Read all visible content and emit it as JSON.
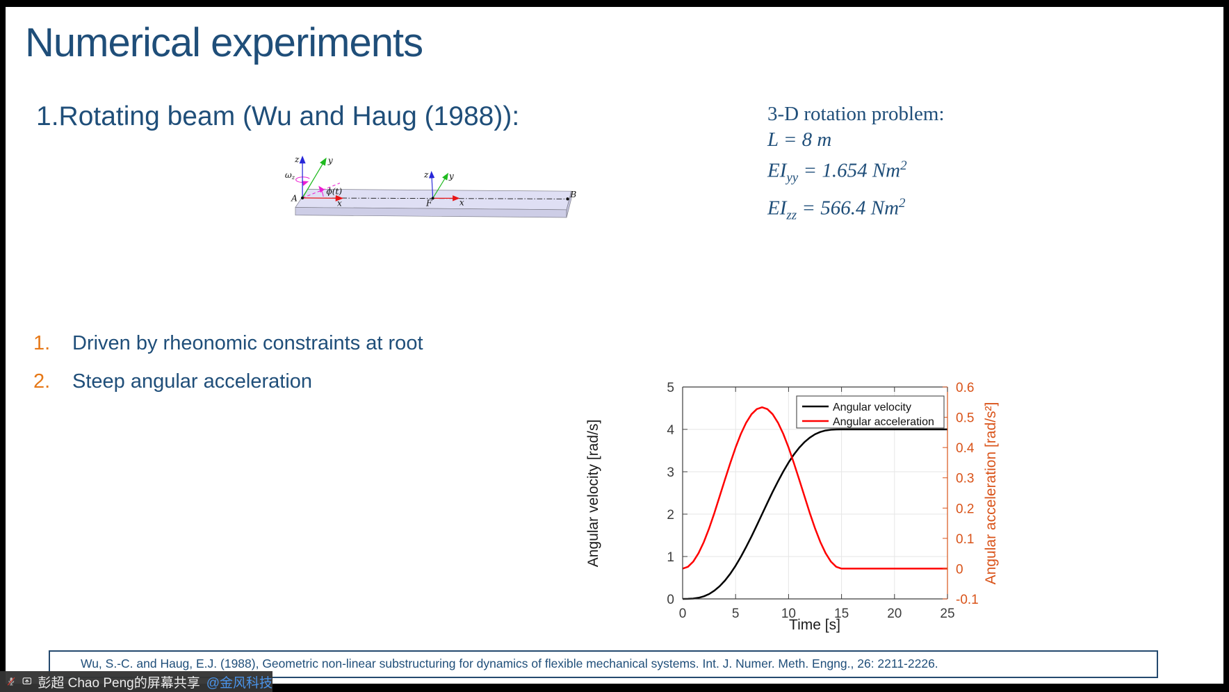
{
  "slide": {
    "title": "Numerical experiments",
    "heading": "1.Rotating beam (Wu and Haug (1988)):"
  },
  "info": {
    "title": "3-D rotation problem:",
    "l_line": "L = 8 m",
    "ei_yy": {
      "base": "EI",
      "sub": "yy",
      "mid": " = 1.654 ",
      "unit": "Nm",
      "sup": "2"
    },
    "ei_zz": {
      "base": "EI",
      "sub": "zz",
      "mid": " = 566.4 ",
      "unit": "Nm",
      "sup": "2"
    }
  },
  "diagram": {
    "labels": {
      "a": "A",
      "b": "B",
      "f": "F",
      "x": "x",
      "y": "y",
      "z": "z",
      "omega": "ω",
      "omega_sub": "z",
      "phi": "ϕ(t)"
    },
    "colors": {
      "x_axis": "#e81416",
      "y_axis": "#1fba1f",
      "z_axis": "#2727d8",
      "magenta": "#ec1fd2",
      "beam_top": "#dfdff4",
      "beam_front": "#cdcde6",
      "beam_side": "#c3c3dc",
      "beam_edge": "#82828f"
    }
  },
  "list": {
    "items": [
      {
        "number": "1.",
        "text": "Driven by rheonomic constraints at root"
      },
      {
        "number": "2.",
        "text": "Steep angular acceleration"
      }
    ]
  },
  "chart_data": {
    "type": "line",
    "title": "",
    "xlabel": "Time [s]",
    "xlim": [
      0,
      25
    ],
    "xticks": [
      0,
      5,
      10,
      15,
      20,
      25
    ],
    "grid": true,
    "legend": {
      "position": "top-right",
      "entries": [
        "Angular velocity",
        "Angular acceleration"
      ]
    },
    "left_axis": {
      "label": "Angular velocity [rad/s]",
      "lim": [
        0,
        5
      ],
      "ticks": [
        0,
        1,
        2,
        3,
        4,
        5
      ],
      "color": "#000000"
    },
    "right_axis": {
      "label": "Angular acceleration [rad/s²]",
      "lim": [
        -0.1,
        0.6
      ],
      "ticks": [
        -0.1,
        0,
        0.1,
        0.2,
        0.3,
        0.4,
        0.5,
        0.6
      ],
      "color": "#d95319"
    },
    "x": [
      0,
      0.5,
      1,
      1.5,
      2,
      2.5,
      3,
      3.5,
      4,
      4.5,
      5,
      5.5,
      6,
      6.5,
      7,
      7.5,
      8,
      8.5,
      9,
      9.5,
      10,
      10.5,
      11,
      11.5,
      12,
      12.5,
      13,
      13.5,
      14,
      14.5,
      15,
      17.5,
      20,
      22.5,
      25
    ],
    "series": [
      {
        "name": "Angular velocity",
        "axis": "left",
        "color": "#000000",
        "values": [
          0,
          0.001,
          0.008,
          0.026,
          0.06,
          0.115,
          0.195,
          0.3,
          0.434,
          0.595,
          0.782,
          0.994,
          1.226,
          1.474,
          1.734,
          2.0,
          2.266,
          2.526,
          2.774,
          3.006,
          3.218,
          3.405,
          3.566,
          3.7,
          3.805,
          3.885,
          3.94,
          3.974,
          3.992,
          3.999,
          4.0,
          4.0,
          4.0,
          4.0,
          4.0
        ]
      },
      {
        "name": "Angular acceleration",
        "axis": "right",
        "color": "#ff0000",
        "values": [
          0,
          0.006,
          0.023,
          0.051,
          0.088,
          0.133,
          0.184,
          0.239,
          0.295,
          0.349,
          0.4,
          0.445,
          0.482,
          0.51,
          0.527,
          0.533,
          0.527,
          0.51,
          0.482,
          0.445,
          0.4,
          0.349,
          0.295,
          0.239,
          0.184,
          0.133,
          0.088,
          0.051,
          0.023,
          0.006,
          0,
          0,
          0,
          0,
          0
        ]
      }
    ]
  },
  "reference": {
    "text": "Wu, S.-C. and Haug, E.J. (1988), Geometric non-linear substructuring for dynamics of flexible mechanical systems. Int. J. Numer. Meth. Engng., 26: 2211-2226."
  },
  "share_toast": {
    "sharer": "彭超 Chao Peng的屏幕共享",
    "mention": "@金风科技",
    "mic_icon": "microphone-muted",
    "share_icon": "screen-share"
  },
  "colors": {
    "title_blue": "#1f4e79",
    "accent_orange": "#e67817",
    "link_blue": "#4a93e8"
  }
}
